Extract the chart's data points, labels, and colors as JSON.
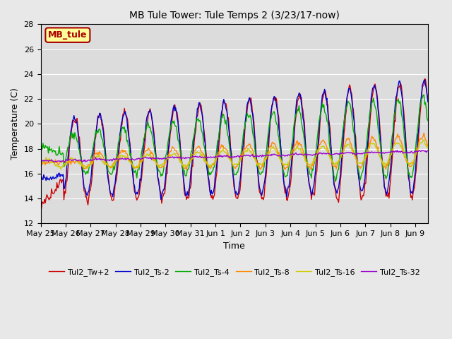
{
  "title": "MB Tule Tower: Tule Temps 2 (3/23/17-now)",
  "xlabel": "Time",
  "ylabel": "Temperature (C)",
  "ylim": [
    12,
    28
  ],
  "yticks": [
    12,
    14,
    16,
    18,
    20,
    22,
    24,
    26,
    28
  ],
  "background_color": "#e8e8e8",
  "plot_bg_color": "#dcdcdc",
  "legend_label": "MB_tule",
  "legend_box_facecolor": "#ffff99",
  "legend_box_edge": "#aa0000",
  "series_colors": {
    "Tul2_Tw+2": "#cc0000",
    "Tul2_Ts-2": "#0000cc",
    "Tul2_Ts-4": "#00aa00",
    "Tul2_Ts-8": "#ff8800",
    "Tul2_Ts-16": "#cccc00",
    "Tul2_Ts-32": "#9900cc"
  },
  "x_tick_labels": [
    "May 25",
    "May 26",
    "May 27",
    "May 28",
    "May 29",
    "May 30",
    "May 31",
    "Jun 1",
    "Jun 2",
    "Jun 3",
    "Jun 4",
    "Jun 5",
    "Jun 6",
    "Jun 7",
    "Jun 8",
    "Jun 9"
  ]
}
